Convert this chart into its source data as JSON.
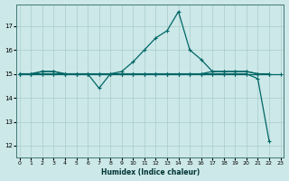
{
  "xlabel": "Humidex (Indice chaleur)",
  "background_color": "#cce8e8",
  "grid_color": "#aacccc",
  "line_color": "#006666",
  "xlim": [
    -0.3,
    23.3
  ],
  "ylim": [
    11.5,
    17.9
  ],
  "yticks": [
    12,
    13,
    14,
    15,
    16,
    17
  ],
  "xticks": [
    0,
    1,
    2,
    3,
    4,
    5,
    6,
    7,
    8,
    9,
    10,
    11,
    12,
    13,
    14,
    15,
    16,
    17,
    18,
    19,
    20,
    21,
    22,
    23
  ],
  "series": [
    [
      15.0,
      15.0,
      15.0,
      15.0,
      15.0,
      15.0,
      15.0,
      15.0,
      15.0,
      15.0,
      15.0,
      15.0,
      15.0,
      15.0,
      15.0,
      15.0,
      15.0,
      15.0,
      15.0,
      15.0,
      15.0,
      15.0,
      15.0,
      15.0
    ],
    [
      15.0,
      15.0,
      15.1,
      15.1,
      15.0,
      15.0,
      15.0,
      15.0,
      15.0,
      15.1,
      15.5,
      16.0,
      16.5,
      16.8,
      17.6,
      16.0,
      15.6,
      15.1,
      15.1,
      15.1,
      15.1,
      15.0,
      15.0,
      null
    ],
    [
      15.0,
      15.0,
      15.1,
      15.1,
      15.0,
      15.0,
      15.0,
      14.4,
      15.0,
      15.0,
      15.0,
      15.0,
      15.0,
      15.0,
      15.0,
      15.0,
      15.0,
      15.1,
      15.1,
      15.1,
      15.1,
      15.0,
      15.0,
      null
    ],
    [
      15.0,
      15.0,
      15.0,
      15.0,
      15.0,
      15.0,
      15.0,
      15.0,
      15.0,
      15.0,
      15.0,
      15.0,
      15.0,
      15.0,
      15.0,
      15.0,
      15.0,
      15.0,
      15.0,
      15.0,
      15.0,
      14.8,
      12.2,
      null
    ]
  ]
}
